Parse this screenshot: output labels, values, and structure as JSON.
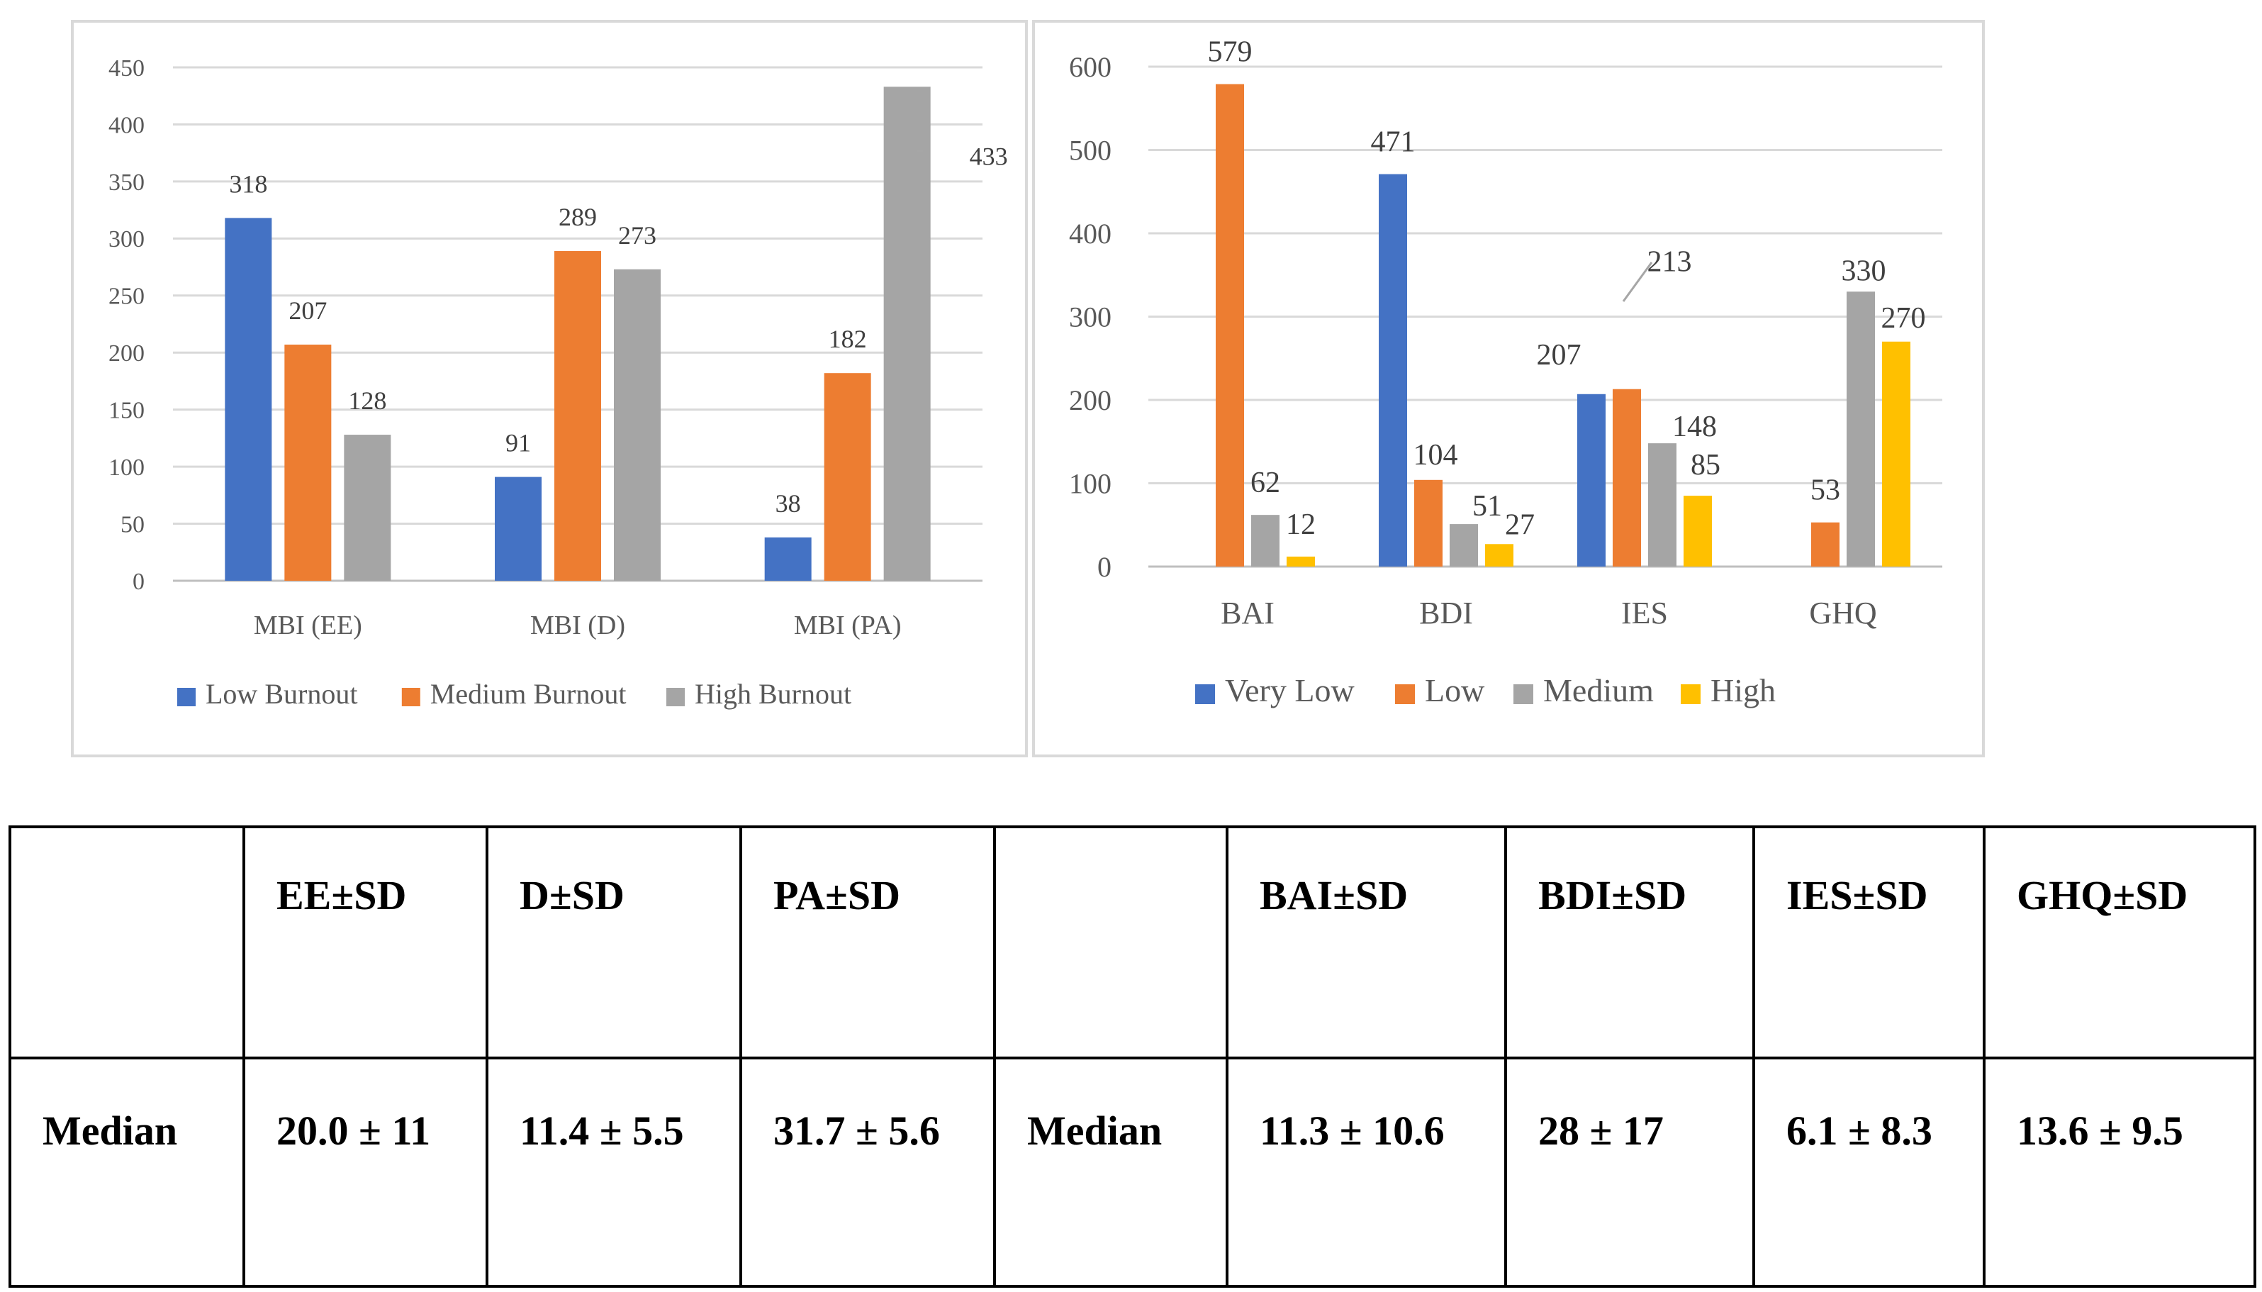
{
  "colors": {
    "blue": "#4472C4",
    "orange": "#ED7D31",
    "gray": "#A5A5A5",
    "yellow": "#FFC000"
  },
  "chart_data": [
    {
      "type": "bar",
      "title": "",
      "xlabel": "",
      "ylabel": "",
      "ylim": [
        0,
        450
      ],
      "yticks": [
        0,
        50,
        100,
        150,
        200,
        250,
        300,
        350,
        400,
        450
      ],
      "grid": true,
      "legend_position": "bottom",
      "categories": [
        "MBI (EE)",
        "MBI (D)",
        "MBI (PA)"
      ],
      "series": [
        {
          "name": "Low Burnout",
          "color": "#4472C4",
          "values": [
            318,
            91,
            38
          ]
        },
        {
          "name": "Medium Burnout",
          "color": "#ED7D31",
          "values": [
            207,
            289,
            182
          ]
        },
        {
          "name": "High Burnout",
          "color": "#A5A5A5",
          "values": [
            128,
            273,
            433
          ]
        }
      ]
    },
    {
      "type": "bar",
      "title": "",
      "xlabel": "",
      "ylabel": "",
      "ylim": [
        0,
        600
      ],
      "yticks": [
        0,
        100,
        200,
        300,
        400,
        500,
        600
      ],
      "grid": true,
      "legend_position": "bottom",
      "categories": [
        "BAI",
        "BDI",
        "IES",
        "GHQ"
      ],
      "series": [
        {
          "name": "Very Low",
          "color": "#4472C4",
          "values": [
            null,
            471,
            207,
            null
          ]
        },
        {
          "name": "Low",
          "color": "#ED7D31",
          "values": [
            579,
            104,
            213,
            53
          ]
        },
        {
          "name": "Medium",
          "color": "#A5A5A5",
          "values": [
            62,
            51,
            148,
            330
          ]
        },
        {
          "name": "High",
          "color": "#FFC000",
          "values": [
            12,
            27,
            85,
            270
          ]
        }
      ]
    }
  ],
  "table": {
    "header": [
      "",
      "EE±SD",
      "D±SD",
      "PA±SD",
      "",
      "BAI±SD",
      "BDI±SD",
      "IES±SD",
      "GHQ±SD"
    ],
    "row": [
      "Median",
      "20.0 ± 11",
      "11.4 ± 5.5",
      "31.7 ± 5.6",
      "Median",
      "11.3 ± 10.6",
      "28 ± 17",
      "6.1 ± 8.3",
      "13.6 ± 9.5"
    ]
  }
}
